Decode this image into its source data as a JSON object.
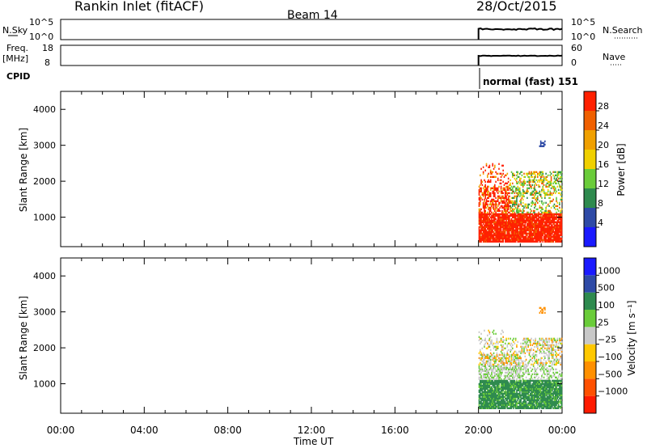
{
  "header": {
    "station": "Rankin Inlet (fitACF)",
    "beam": "Beam 14",
    "date": "28/Oct/2015"
  },
  "top_panels": {
    "nsky_label": "N.Sky",
    "nsky_ticks": [
      "10^5",
      "10^0"
    ],
    "nsearch_label": "N.Search",
    "nsearch_ticks": [
      "10^5",
      "10^0"
    ],
    "freq_label": "Freq.",
    "freq_unit": "[MHz]",
    "freq_ticks": [
      "18",
      "8"
    ],
    "nave_label": "Nave",
    "nave_ticks": [
      "60",
      "0"
    ],
    "cpid_label": "CPID",
    "cpid_value": "normal (fast) 151"
  },
  "chart_data": [
    {
      "type": "heatmap",
      "name": "power",
      "xlabel": "",
      "ylabel": "Slant Range [km]",
      "xlim": [
        0,
        24
      ],
      "ylim": [
        180,
        4500
      ],
      "y_ticks": [
        1000,
        2000,
        3000,
        4000
      ],
      "colorbar": {
        "label": "Power [dB]",
        "ticks": [
          "28",
          "24",
          "20",
          "16",
          "12",
          "8",
          "4"
        ],
        "colors": [
          "#1a1aff",
          "#2e4aa6",
          "#2e8a4e",
          "#6acc3a",
          "#f0d000",
          "#f0a000",
          "#f06000",
          "#ff2000"
        ]
      },
      "scatter_regions": [
        {
          "t0": 20.0,
          "t1": 24.0,
          "r0": 300,
          "r1": 1100,
          "dominant": "28+"
        },
        {
          "t0": 20.0,
          "t1": 21.5,
          "r0": 1100,
          "r1": 2200,
          "dominant": "28+"
        },
        {
          "t0": 21.5,
          "t1": 24.0,
          "r0": 1100,
          "r1": 2200,
          "dominant": "12-20"
        },
        {
          "t0": 23.0,
          "t1": 23.2,
          "r0": 2950,
          "r1": 3100,
          "dominant": "4-8"
        }
      ]
    },
    {
      "type": "heatmap",
      "name": "velocity",
      "xlabel": "Time UT",
      "ylabel": "Slant Range [km]",
      "xlim": [
        0,
        24
      ],
      "ylim": [
        180,
        4500
      ],
      "y_ticks": [
        1000,
        2000,
        3000,
        4000
      ],
      "x_ticks": [
        "00:00",
        "04:00",
        "08:00",
        "12:00",
        "16:00",
        "20:00",
        "00:00"
      ],
      "colorbar": {
        "label": "Velocity [m s⁻¹]",
        "ticks": [
          "1000",
          "500",
          "100",
          "25",
          "−25",
          "−100",
          "−500",
          "−1000"
        ],
        "colors": [
          "#ff1a00",
          "#ff5000",
          "#ff9000",
          "#ffc800",
          "#c8c8c8",
          "#6acc3a",
          "#2e8a4e",
          "#2e4aa6",
          "#1a1aff"
        ]
      },
      "scatter_regions": [
        {
          "t0": 20.0,
          "t1": 24.0,
          "r0": 300,
          "r1": 1100,
          "dominant": "100 to 500"
        },
        {
          "t0": 20.0,
          "t1": 22.0,
          "r0": 1100,
          "r1": 1800,
          "dominant": "-25 to 25"
        },
        {
          "t0": 22.0,
          "t1": 24.0,
          "r0": 1800,
          "r1": 2200,
          "dominant": "-25 to 25"
        }
      ]
    }
  ]
}
